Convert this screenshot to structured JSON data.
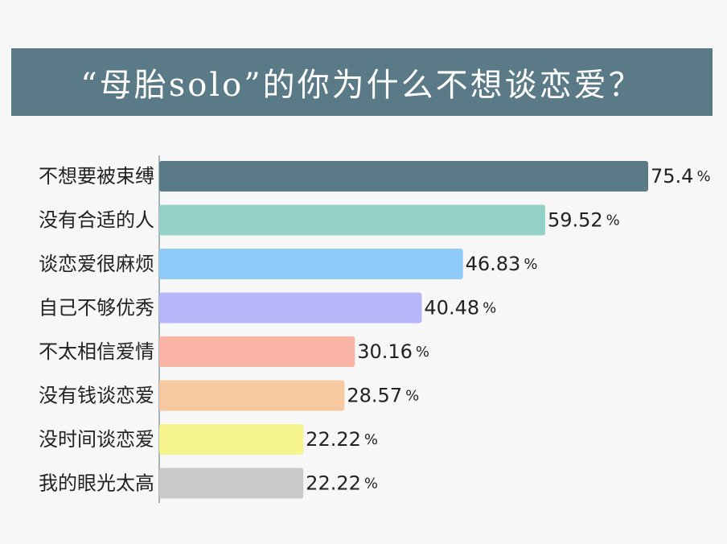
{
  "header": {
    "title": "“母胎solo”的你为什么不想谈恋爱？"
  },
  "chart_data": {
    "type": "bar",
    "orientation": "horizontal",
    "title": "“母胎solo”的你为什么不想谈恋爱？",
    "categories": [
      "不想要被束缚",
      "没有合适的人",
      "谈恋爱很麻烦",
      "自己不够优秀",
      "不太相信爱情",
      "没有钱谈恋爱",
      "没时间谈恋爱",
      "我的眼光太高"
    ],
    "values": [
      75.4,
      59.52,
      46.83,
      40.48,
      30.16,
      28.57,
      22.22,
      22.22
    ],
    "value_labels": [
      "75.4",
      "59.52",
      "46.83",
      "40.48",
      "30.16",
      "28.57",
      "22.22",
      "22.22"
    ],
    "unit": "%",
    "colors": [
      "#5b7a87",
      "#94d2c7",
      "#8fcbf8",
      "#b8b5f8",
      "#f9b4a6",
      "#f8c8a0",
      "#f6f48c",
      "#c9c9c9"
    ],
    "xlim": [
      0,
      75.4
    ],
    "grid": false,
    "legend": "none"
  }
}
